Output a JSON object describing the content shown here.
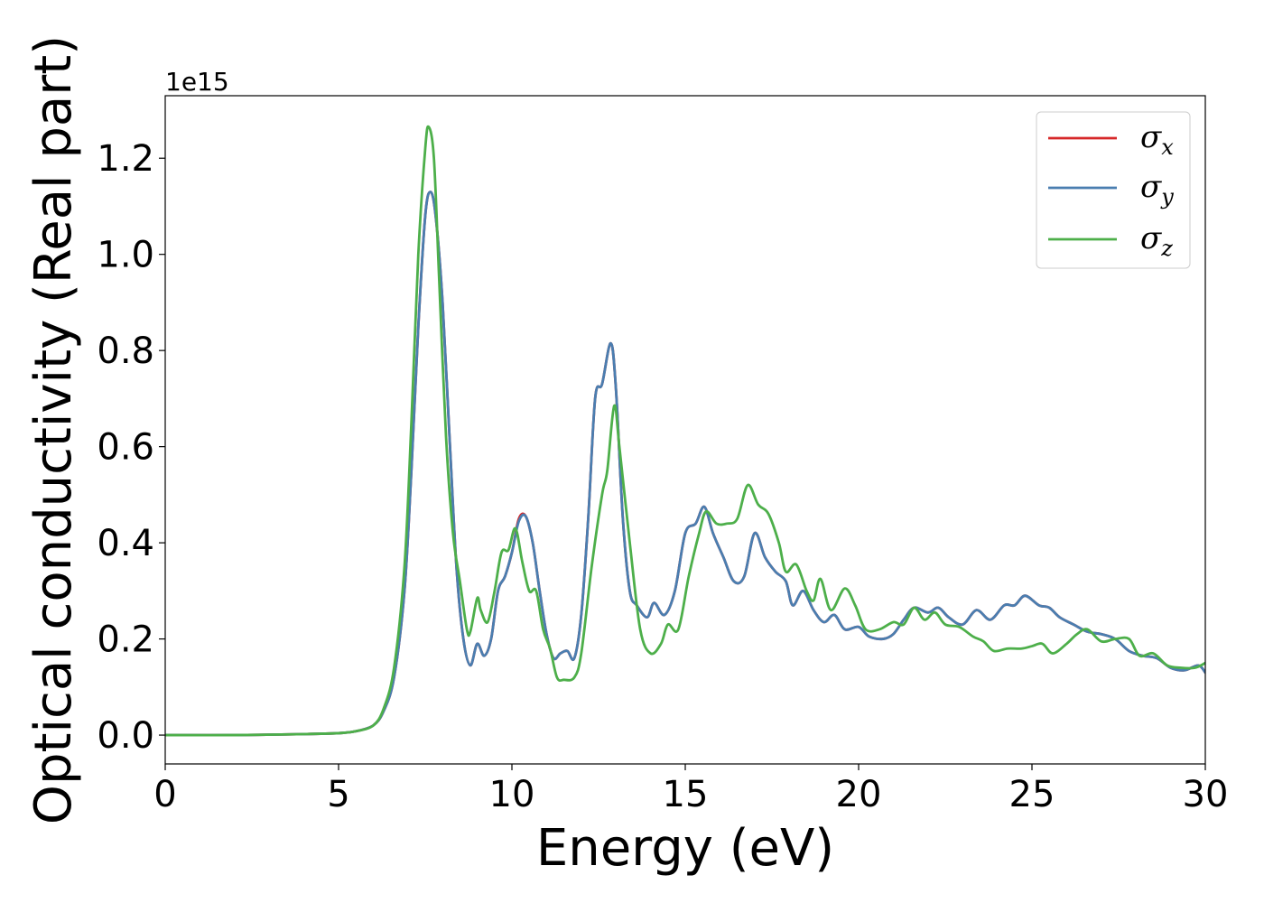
{
  "chart_data": {
    "type": "line",
    "title": "",
    "xlabel": "Energy (eV)",
    "ylabel": "Optical conductivity (Real part)",
    "y_offset_label": "1e15",
    "xlim": [
      0,
      30
    ],
    "ylim": [
      -0.06,
      1.33
    ],
    "x_ticks": [
      0,
      5,
      10,
      15,
      20,
      25,
      30
    ],
    "x_tick_labels": [
      "0",
      "5",
      "10",
      "15",
      "20",
      "25",
      "30"
    ],
    "y_ticks": [
      0.0,
      0.2,
      0.4,
      0.6,
      0.8,
      1.0,
      1.2
    ],
    "y_tick_labels": [
      "0.0",
      "0.2",
      "0.4",
      "0.6",
      "0.8",
      "1.0",
      "1.2"
    ],
    "grid": false,
    "legend_position": "top-right",
    "series": [
      {
        "name": "σ",
        "subscript": "x",
        "color": "#d62728",
        "points": [
          [
            0,
            0
          ],
          [
            2,
            0
          ],
          [
            4,
            0.002
          ],
          [
            5,
            0.004
          ],
          [
            5.5,
            0.008
          ],
          [
            6,
            0.02
          ],
          [
            6.3,
            0.05
          ],
          [
            6.6,
            0.12
          ],
          [
            6.9,
            0.3
          ],
          [
            7.1,
            0.55
          ],
          [
            7.3,
            0.85
          ],
          [
            7.5,
            1.08
          ],
          [
            7.65,
            1.13
          ],
          [
            7.8,
            1.08
          ],
          [
            8.0,
            0.9
          ],
          [
            8.2,
            0.62
          ],
          [
            8.4,
            0.35
          ],
          [
            8.6,
            0.2
          ],
          [
            8.8,
            0.145
          ],
          [
            9.0,
            0.19
          ],
          [
            9.2,
            0.165
          ],
          [
            9.4,
            0.2
          ],
          [
            9.6,
            0.3
          ],
          [
            9.8,
            0.33
          ],
          [
            10.0,
            0.38
          ],
          [
            10.2,
            0.45
          ],
          [
            10.4,
            0.455
          ],
          [
            10.6,
            0.4
          ],
          [
            10.8,
            0.3
          ],
          [
            11.0,
            0.21
          ],
          [
            11.2,
            0.16
          ],
          [
            11.4,
            0.17
          ],
          [
            11.6,
            0.175
          ],
          [
            11.8,
            0.16
          ],
          [
            12.0,
            0.25
          ],
          [
            12.2,
            0.45
          ],
          [
            12.4,
            0.7
          ],
          [
            12.6,
            0.73
          ],
          [
            12.85,
            0.815
          ],
          [
            13.0,
            0.72
          ],
          [
            13.2,
            0.45
          ],
          [
            13.4,
            0.3
          ],
          [
            13.6,
            0.27
          ],
          [
            13.9,
            0.245
          ],
          [
            14.1,
            0.275
          ],
          [
            14.4,
            0.25
          ],
          [
            14.7,
            0.3
          ],
          [
            15.0,
            0.42
          ],
          [
            15.3,
            0.44
          ],
          [
            15.55,
            0.475
          ],
          [
            15.8,
            0.42
          ],
          [
            16.1,
            0.37
          ],
          [
            16.4,
            0.32
          ],
          [
            16.7,
            0.33
          ],
          [
            17.0,
            0.42
          ],
          [
            17.3,
            0.37
          ],
          [
            17.6,
            0.34
          ],
          [
            17.9,
            0.32
          ],
          [
            18.1,
            0.27
          ],
          [
            18.4,
            0.3
          ],
          [
            18.7,
            0.26
          ],
          [
            19.0,
            0.235
          ],
          [
            19.3,
            0.25
          ],
          [
            19.6,
            0.22
          ],
          [
            20.0,
            0.225
          ],
          [
            20.3,
            0.205
          ],
          [
            20.7,
            0.2
          ],
          [
            21.0,
            0.21
          ],
          [
            21.3,
            0.24
          ],
          [
            21.6,
            0.265
          ],
          [
            22.0,
            0.255
          ],
          [
            22.3,
            0.265
          ],
          [
            22.6,
            0.245
          ],
          [
            23.0,
            0.23
          ],
          [
            23.4,
            0.26
          ],
          [
            23.8,
            0.24
          ],
          [
            24.2,
            0.27
          ],
          [
            24.5,
            0.27
          ],
          [
            24.8,
            0.29
          ],
          [
            25.2,
            0.27
          ],
          [
            25.5,
            0.265
          ],
          [
            25.8,
            0.245
          ],
          [
            26.2,
            0.23
          ],
          [
            26.6,
            0.215
          ],
          [
            27.0,
            0.21
          ],
          [
            27.4,
            0.2
          ],
          [
            27.8,
            0.175
          ],
          [
            28.2,
            0.165
          ],
          [
            28.6,
            0.16
          ],
          [
            29.0,
            0.14
          ],
          [
            29.4,
            0.135
          ],
          [
            29.8,
            0.145
          ],
          [
            30,
            0.13
          ]
        ]
      },
      {
        "name": "σ",
        "subscript": "y",
        "color": "#4a7eb0",
        "points": [
          [
            0,
            0
          ],
          [
            2,
            0
          ],
          [
            4,
            0.002
          ],
          [
            5,
            0.004
          ],
          [
            5.5,
            0.008
          ],
          [
            6,
            0.02
          ],
          [
            6.3,
            0.05
          ],
          [
            6.6,
            0.12
          ],
          [
            6.9,
            0.3
          ],
          [
            7.1,
            0.55
          ],
          [
            7.3,
            0.85
          ],
          [
            7.5,
            1.08
          ],
          [
            7.65,
            1.13
          ],
          [
            7.8,
            1.08
          ],
          [
            8.0,
            0.9
          ],
          [
            8.2,
            0.62
          ],
          [
            8.4,
            0.35
          ],
          [
            8.6,
            0.2
          ],
          [
            8.8,
            0.145
          ],
          [
            9.0,
            0.19
          ],
          [
            9.2,
            0.165
          ],
          [
            9.4,
            0.2
          ],
          [
            9.6,
            0.3
          ],
          [
            9.8,
            0.33
          ],
          [
            10.0,
            0.38
          ],
          [
            10.2,
            0.445
          ],
          [
            10.4,
            0.455
          ],
          [
            10.6,
            0.4
          ],
          [
            10.8,
            0.3
          ],
          [
            11.0,
            0.21
          ],
          [
            11.2,
            0.16
          ],
          [
            11.4,
            0.17
          ],
          [
            11.6,
            0.175
          ],
          [
            11.8,
            0.16
          ],
          [
            12.0,
            0.25
          ],
          [
            12.2,
            0.45
          ],
          [
            12.4,
            0.7
          ],
          [
            12.6,
            0.73
          ],
          [
            12.85,
            0.815
          ],
          [
            13.0,
            0.72
          ],
          [
            13.2,
            0.45
          ],
          [
            13.4,
            0.3
          ],
          [
            13.6,
            0.27
          ],
          [
            13.9,
            0.245
          ],
          [
            14.1,
            0.275
          ],
          [
            14.4,
            0.25
          ],
          [
            14.7,
            0.3
          ],
          [
            15.0,
            0.42
          ],
          [
            15.3,
            0.44
          ],
          [
            15.55,
            0.475
          ],
          [
            15.8,
            0.42
          ],
          [
            16.1,
            0.37
          ],
          [
            16.4,
            0.32
          ],
          [
            16.7,
            0.33
          ],
          [
            17.0,
            0.42
          ],
          [
            17.3,
            0.37
          ],
          [
            17.6,
            0.34
          ],
          [
            17.9,
            0.32
          ],
          [
            18.1,
            0.27
          ],
          [
            18.4,
            0.3
          ],
          [
            18.7,
            0.26
          ],
          [
            19.0,
            0.235
          ],
          [
            19.3,
            0.25
          ],
          [
            19.6,
            0.22
          ],
          [
            20.0,
            0.225
          ],
          [
            20.3,
            0.205
          ],
          [
            20.7,
            0.2
          ],
          [
            21.0,
            0.21
          ],
          [
            21.3,
            0.24
          ],
          [
            21.6,
            0.265
          ],
          [
            22.0,
            0.255
          ],
          [
            22.3,
            0.265
          ],
          [
            22.6,
            0.245
          ],
          [
            23.0,
            0.23
          ],
          [
            23.4,
            0.26
          ],
          [
            23.8,
            0.24
          ],
          [
            24.2,
            0.27
          ],
          [
            24.5,
            0.27
          ],
          [
            24.8,
            0.29
          ],
          [
            25.2,
            0.27
          ],
          [
            25.5,
            0.265
          ],
          [
            25.8,
            0.245
          ],
          [
            26.2,
            0.23
          ],
          [
            26.6,
            0.215
          ],
          [
            27.0,
            0.21
          ],
          [
            27.4,
            0.2
          ],
          [
            27.8,
            0.175
          ],
          [
            28.2,
            0.165
          ],
          [
            28.6,
            0.16
          ],
          [
            29.0,
            0.14
          ],
          [
            29.4,
            0.135
          ],
          [
            29.8,
            0.145
          ],
          [
            30,
            0.13
          ]
        ]
      },
      {
        "name": "σ",
        "subscript": "z",
        "color": "#4daf4a",
        "points": [
          [
            0,
            0
          ],
          [
            2,
            0
          ],
          [
            4,
            0.002
          ],
          [
            5,
            0.004
          ],
          [
            5.5,
            0.008
          ],
          [
            6,
            0.02
          ],
          [
            6.3,
            0.055
          ],
          [
            6.6,
            0.14
          ],
          [
            6.9,
            0.35
          ],
          [
            7.1,
            0.65
          ],
          [
            7.3,
            1.0
          ],
          [
            7.5,
            1.22
          ],
          [
            7.6,
            1.265
          ],
          [
            7.75,
            1.2
          ],
          [
            7.9,
            0.95
          ],
          [
            8.1,
            0.62
          ],
          [
            8.3,
            0.42
          ],
          [
            8.5,
            0.32
          ],
          [
            8.7,
            0.22
          ],
          [
            8.8,
            0.215
          ],
          [
            9.0,
            0.285
          ],
          [
            9.1,
            0.26
          ],
          [
            9.3,
            0.235
          ],
          [
            9.5,
            0.3
          ],
          [
            9.7,
            0.38
          ],
          [
            9.9,
            0.385
          ],
          [
            10.1,
            0.43
          ],
          [
            10.3,
            0.36
          ],
          [
            10.5,
            0.3
          ],
          [
            10.7,
            0.3
          ],
          [
            10.9,
            0.22
          ],
          [
            11.1,
            0.18
          ],
          [
            11.3,
            0.12
          ],
          [
            11.5,
            0.115
          ],
          [
            11.8,
            0.12
          ],
          [
            12.0,
            0.17
          ],
          [
            12.3,
            0.35
          ],
          [
            12.6,
            0.5
          ],
          [
            12.75,
            0.55
          ],
          [
            12.95,
            0.685
          ],
          [
            13.1,
            0.6
          ],
          [
            13.4,
            0.4
          ],
          [
            13.7,
            0.22
          ],
          [
            14.0,
            0.17
          ],
          [
            14.3,
            0.19
          ],
          [
            14.5,
            0.23
          ],
          [
            14.8,
            0.22
          ],
          [
            15.1,
            0.33
          ],
          [
            15.4,
            0.42
          ],
          [
            15.6,
            0.465
          ],
          [
            15.9,
            0.44
          ],
          [
            16.2,
            0.44
          ],
          [
            16.5,
            0.45
          ],
          [
            16.8,
            0.52
          ],
          [
            17.1,
            0.48
          ],
          [
            17.4,
            0.46
          ],
          [
            17.7,
            0.4
          ],
          [
            17.9,
            0.34
          ],
          [
            18.2,
            0.355
          ],
          [
            18.5,
            0.3
          ],
          [
            18.7,
            0.28
          ],
          [
            18.9,
            0.325
          ],
          [
            19.2,
            0.26
          ],
          [
            19.6,
            0.305
          ],
          [
            19.9,
            0.27
          ],
          [
            20.2,
            0.22
          ],
          [
            20.6,
            0.22
          ],
          [
            21.0,
            0.235
          ],
          [
            21.3,
            0.23
          ],
          [
            21.6,
            0.265
          ],
          [
            21.9,
            0.24
          ],
          [
            22.2,
            0.255
          ],
          [
            22.5,
            0.23
          ],
          [
            22.9,
            0.225
          ],
          [
            23.3,
            0.205
          ],
          [
            23.6,
            0.195
          ],
          [
            23.9,
            0.175
          ],
          [
            24.3,
            0.18
          ],
          [
            24.7,
            0.18
          ],
          [
            25.0,
            0.185
          ],
          [
            25.3,
            0.19
          ],
          [
            25.6,
            0.17
          ],
          [
            26.0,
            0.19
          ],
          [
            26.3,
            0.21
          ],
          [
            26.6,
            0.22
          ],
          [
            27.0,
            0.195
          ],
          [
            27.4,
            0.2
          ],
          [
            27.8,
            0.2
          ],
          [
            28.1,
            0.165
          ],
          [
            28.5,
            0.17
          ],
          [
            28.9,
            0.145
          ],
          [
            29.3,
            0.14
          ],
          [
            29.7,
            0.14
          ],
          [
            30,
            0.15
          ]
        ]
      }
    ]
  }
}
